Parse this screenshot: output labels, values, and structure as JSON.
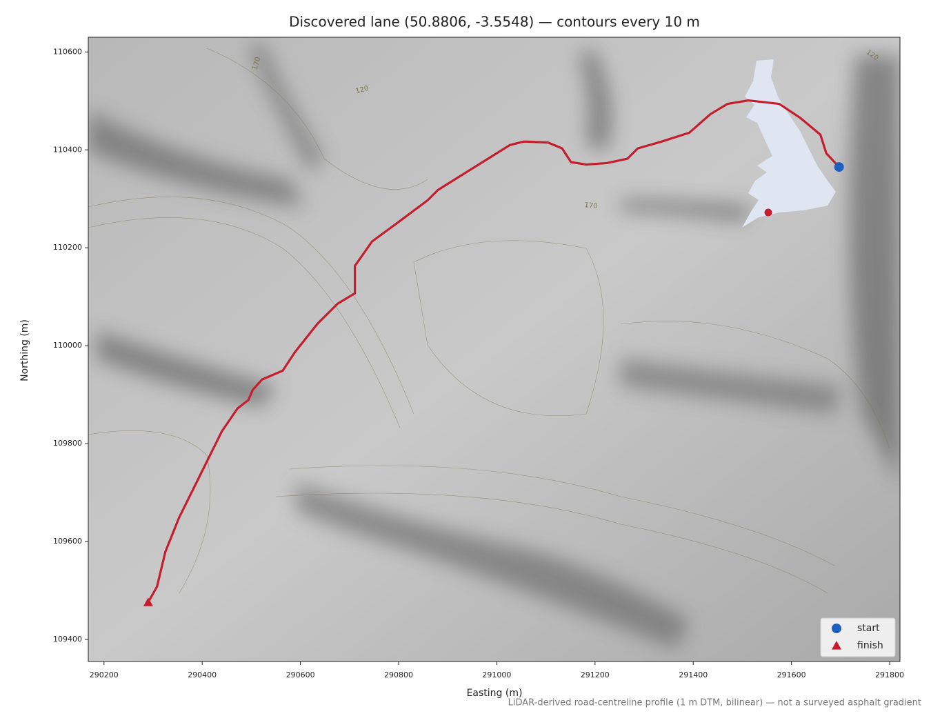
{
  "chart_data": {
    "type": "line",
    "title": "Discovered lane (50.8806, -3.5548) — contours every 10 m",
    "xlabel": "Easting (m)",
    "ylabel": "Northing (m)",
    "note": "LiDAR-derived road-centreline profile (1 m DTM, bilinear) — not a surveyed asphalt gradient",
    "xlim": [
      290168,
      291821
    ],
    "ylim": [
      109355,
      110630
    ],
    "xticks": [
      290200,
      290400,
      290600,
      290800,
      291000,
      291200,
      291400,
      291600,
      291800
    ],
    "yticks": [
      109400,
      109600,
      109800,
      110000,
      110200,
      110400,
      110600
    ],
    "x": [
      290290,
      290308,
      290325,
      290353,
      290395,
      290440,
      290472,
      290494,
      290503,
      290522,
      290564,
      290589,
      290634,
      290676,
      290711,
      290711,
      290746,
      290803,
      290859,
      290880,
      290971,
      291027,
      291055,
      291104,
      291133,
      291151,
      291182,
      291224,
      291266,
      291287,
      291336,
      291392,
      291435,
      291470,
      291512,
      291575,
      291617,
      291659,
      291671,
      291697
    ],
    "series": [
      {
        "color": "#c41e2e",
        "values": [
          109476,
          109508,
          109579,
          109649,
          109734,
          109825,
          109872,
          109889,
          109910,
          109931,
          109949,
          109987,
          110044,
          110086,
          110107,
          110163,
          110213,
          110255,
          110297,
          110318,
          110375,
          110410,
          110417,
          110415,
          110403,
          110375,
          110370,
          110373,
          110382,
          110403,
          110417,
          110435,
          110473,
          110494,
          110501,
          110494,
          110466,
          110431,
          110393,
          110365
        ]
      }
    ],
    "markers": [
      {
        "name": "start",
        "color": "#1f5fbf",
        "marker": "circle",
        "x": 291697,
        "y": 110365
      },
      {
        "name": "finish",
        "color": "#c41e2e",
        "marker": "triangle",
        "x": 290290,
        "y": 109476
      }
    ],
    "contour_labels": [
      "170",
      "120",
      "170",
      "120"
    ],
    "legend": "lower right"
  }
}
